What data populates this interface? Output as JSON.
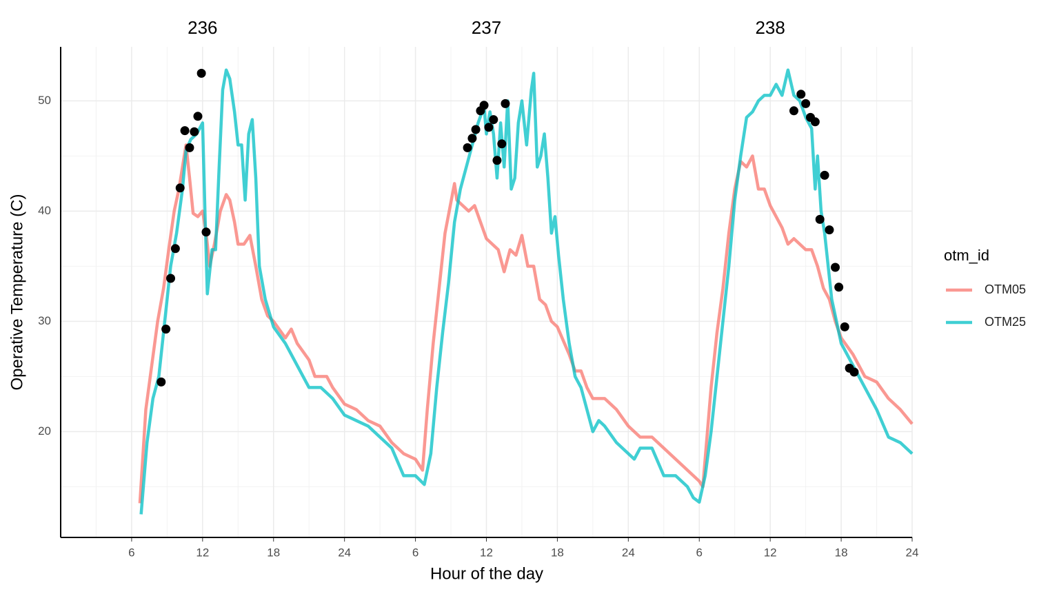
{
  "chart_data": {
    "type": "line",
    "xlabel": "Hour of the day",
    "ylabel": "Operative Temperature (C)",
    "annotations": [
      {
        "text": "236",
        "x": 12
      },
      {
        "text": "237",
        "x": 36
      },
      {
        "text": "238",
        "x": 60
      }
    ],
    "xlim": [
      0,
      72
    ],
    "ylim": [
      10.4,
      54.9
    ],
    "xticks": [
      6,
      12,
      18,
      24,
      {
        "value": 30,
        "label": "6"
      },
      {
        "value": 36,
        "label": "12"
      },
      {
        "value": 42,
        "label": "18"
      },
      {
        "value": 48,
        "label": "24"
      },
      {
        "value": 54,
        "label": "6"
      },
      {
        "value": 60,
        "label": "12"
      },
      {
        "value": 66,
        "label": "18"
      },
      {
        "value": 72,
        "label": "24"
      }
    ],
    "yticks": [
      20,
      30,
      40,
      50
    ],
    "grid": true,
    "legend_title": "otm_id",
    "legend": "right",
    "series": [
      {
        "name": "OTM05",
        "color": "#f8766d",
        "x": [
          6.7,
          7.2,
          7.7,
          8.2,
          8.7,
          9.2,
          9.6,
          10,
          10.3,
          10.6,
          10.9,
          11.2,
          11.6,
          12,
          12.3,
          12.6,
          13,
          13.5,
          14,
          14.3,
          14.7,
          15,
          15.5,
          16,
          16.5,
          17,
          17.5,
          18,
          19,
          19.5,
          20,
          21,
          21.5,
          22.5,
          23,
          24,
          25,
          26,
          27,
          28,
          29,
          30,
          30.6,
          31,
          31.5,
          32,
          32.5,
          33.3,
          33.5,
          34,
          34.5,
          35,
          35.5,
          36,
          37,
          37.5,
          38,
          38.5,
          39,
          39.5,
          40,
          40.5,
          41,
          41.5,
          42,
          43,
          43.5,
          44,
          44.5,
          45,
          46,
          47,
          48,
          49,
          50,
          51,
          52,
          53,
          54,
          54.3,
          55,
          55.5,
          56,
          56.5,
          57,
          57.5,
          58,
          58.5,
          59,
          59.5,
          60,
          61,
          61.5,
          62,
          62.5,
          63,
          63.5,
          64,
          64.5,
          65,
          65.5,
          66,
          67,
          68,
          69,
          70,
          71,
          72
        ],
        "values": [
          13.5,
          22,
          26,
          30,
          33,
          37,
          40,
          42,
          44,
          46,
          43,
          39.8,
          39.5,
          40,
          38,
          35,
          37,
          40,
          41.5,
          41,
          39,
          37,
          37,
          37.8,
          35,
          32,
          30.5,
          30,
          28.5,
          29.3,
          28,
          26.5,
          25,
          25,
          24,
          22.5,
          22,
          21,
          20.5,
          19,
          18,
          17.5,
          16.5,
          22,
          28,
          33,
          38,
          42.5,
          41,
          40.5,
          40,
          40.5,
          39,
          37.5,
          36.5,
          34.5,
          36.5,
          36,
          37.8,
          35,
          35,
          32,
          31.5,
          30,
          29.5,
          27,
          25.5,
          25.5,
          24,
          23,
          23,
          22,
          20.5,
          19.5,
          19.5,
          18.5,
          17.5,
          16.5,
          15.5,
          15,
          24,
          29,
          33,
          38,
          42,
          44.5,
          44,
          45,
          42,
          42,
          40.5,
          38.5,
          37,
          37.5,
          37,
          36.5,
          36.5,
          35,
          33,
          32,
          30,
          28.5,
          27,
          25,
          24.5,
          23,
          22,
          20.7
        ]
      },
      {
        "name": "OTM25",
        "color": "#00bfc4",
        "x": [
          6.8,
          7.3,
          7.8,
          8.3,
          8.8,
          9.3,
          9.8,
          10.3,
          10.6,
          11,
          11.5,
          12,
          12.2,
          12.4,
          12.8,
          13.1,
          13.4,
          13.7,
          14,
          14.3,
          14.7,
          15,
          15.3,
          15.6,
          15.9,
          16.2,
          16.5,
          16.8,
          17.3,
          18,
          19,
          20,
          21,
          22,
          23,
          24,
          25,
          26,
          27,
          28,
          29,
          30,
          30.75,
          31.3,
          31.8,
          32.3,
          32.8,
          33.3,
          33.8,
          34.3,
          34.8,
          35.3,
          35.8,
          36,
          36.3,
          36.6,
          36.9,
          37.2,
          37.5,
          37.8,
          38.1,
          38.4,
          38.7,
          39,
          39.4,
          39.8,
          40,
          40.3,
          40.6,
          40.9,
          41.2,
          41.5,
          41.8,
          42.1,
          42.5,
          43,
          43.5,
          44,
          44.5,
          45,
          45.5,
          46,
          47,
          48,
          48.5,
          49,
          50,
          51,
          52,
          53,
          53.5,
          54,
          54.5,
          55,
          55.5,
          56,
          56.5,
          57,
          57.5,
          58,
          58.5,
          59,
          59.5,
          60,
          60.5,
          61,
          61.5,
          62,
          62.5,
          63,
          63.5,
          63.8,
          64,
          64.3,
          64.6,
          64.9,
          65.2,
          65.6,
          66,
          67,
          68,
          69,
          70,
          71,
          72
        ],
        "values": [
          12.5,
          19,
          23,
          25,
          30,
          35,
          38,
          42,
          45.5,
          46.5,
          47,
          48,
          40,
          32.5,
          36.5,
          36.5,
          44,
          51,
          52.8,
          52,
          49,
          46,
          46,
          41,
          47,
          48.3,
          43,
          35,
          32,
          29.5,
          28,
          26,
          24,
          24,
          23,
          21.5,
          21,
          20.5,
          19.5,
          18.5,
          16,
          16,
          15.2,
          18,
          24,
          29,
          33.5,
          39,
          42,
          44,
          46,
          48,
          49.5,
          47,
          49,
          47,
          43,
          48,
          44,
          50,
          42,
          43,
          48,
          50,
          46,
          51,
          52.5,
          44,
          45,
          47,
          43,
          38,
          39.5,
          36,
          32,
          28,
          25,
          24,
          22,
          20,
          21,
          20.5,
          19,
          18,
          17.5,
          18.5,
          18.5,
          16,
          16,
          15,
          14,
          13.6,
          16,
          20,
          25,
          30,
          35,
          41,
          45,
          48.5,
          49,
          50,
          50.5,
          50.5,
          51.5,
          50.5,
          52.8,
          50.5,
          50,
          48.5,
          47.5,
          42,
          45,
          40,
          38,
          35,
          32,
          30,
          28,
          26,
          24,
          22,
          19.5,
          19,
          18
        ]
      }
    ],
    "points": {
      "color": "#000000",
      "x": [
        8.5,
        8.9,
        9.3,
        9.7,
        10.1,
        10.5,
        10.9,
        11.3,
        11.6,
        11.9,
        12.3,
        34.4,
        34.8,
        35.1,
        35.5,
        35.8,
        36.2,
        36.6,
        36.9,
        37.3,
        37.6,
        62.0,
        62.6,
        63.0,
        63.4,
        63.8,
        64.6,
        64.2,
        65.0,
        65.5,
        65.8,
        66.3,
        66.7,
        67.1
      ],
      "y": [
        24.5,
        29.3,
        33.9,
        36.6,
        42.1,
        47.3,
        45.75,
        47.2,
        48.6,
        52.5,
        38.1,
        45.75,
        46.6,
        47.4,
        49.1,
        49.6,
        47.6,
        48.3,
        44.6,
        46.1,
        49.75,
        49.1,
        50.6,
        49.75,
        48.5,
        48.1,
        43.25,
        39.25,
        38.3,
        34.9,
        33.1,
        29.5,
        25.75,
        25.4
      ]
    }
  }
}
